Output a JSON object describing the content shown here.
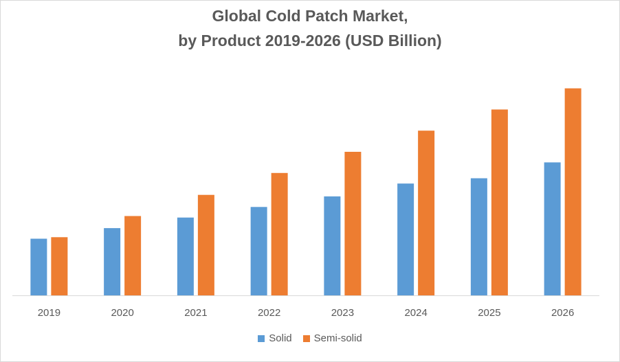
{
  "chart_data": {
    "type": "bar",
    "title_lines": [
      "Global Cold Patch Market,",
      "by Product 2019-2026 (USD Billion)"
    ],
    "categories": [
      "2019",
      "2020",
      "2021",
      "2022",
      "2023",
      "2024",
      "2025",
      "2026"
    ],
    "series": [
      {
        "name": "Solid",
        "color": "#5b9bd5",
        "values": [
          0.75,
          0.89,
          1.03,
          1.17,
          1.31,
          1.48,
          1.55,
          1.76
        ]
      },
      {
        "name": "Semi-solid",
        "color": "#ed7d31",
        "values": [
          0.77,
          1.05,
          1.33,
          1.62,
          1.9,
          2.18,
          2.46,
          2.74
        ]
      }
    ],
    "ylim": [
      0,
      3.0
    ],
    "grid": false,
    "legend_position": "bottom"
  }
}
